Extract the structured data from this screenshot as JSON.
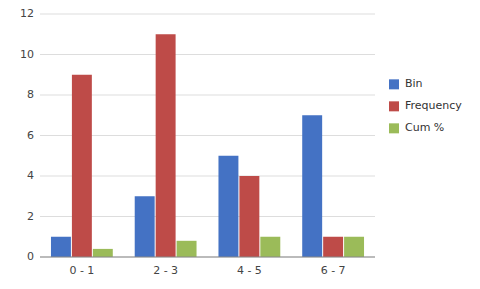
{
  "chart_data": {
    "type": "bar",
    "categories": [
      "0 - 1",
      "2 - 3",
      "4 - 5",
      "6 - 7"
    ],
    "series": [
      {
        "name": "Bin",
        "color": "#4472C4",
        "values": [
          1,
          3,
          5,
          7
        ]
      },
      {
        "name": "Frequency",
        "color": "#BE4B48",
        "values": [
          9,
          11,
          4,
          1
        ]
      },
      {
        "name": "Cum %",
        "color": "#9BBB59",
        "values": [
          0.4,
          0.8,
          1.0,
          1.0
        ]
      }
    ],
    "ylim": [
      0,
      12
    ],
    "yticks": [
      0,
      2,
      4,
      6,
      8,
      10,
      12
    ],
    "grid": true,
    "legend": "right"
  }
}
